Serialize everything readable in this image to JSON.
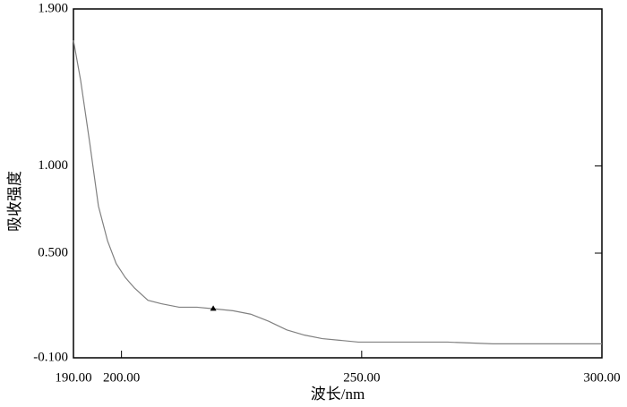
{
  "chart_data": {
    "type": "line",
    "x_label": "波长/nm",
    "y_label": "吸收强度",
    "x": [
      190.0,
      191.5,
      193.4,
      195.2,
      197.1,
      198.9,
      200.8,
      202.7,
      205.5,
      208.3,
      212.0,
      215.7,
      219.5,
      223.2,
      226.9,
      230.6,
      234.4,
      238.1,
      241.8,
      245.6,
      249.3,
      258.6,
      267.9,
      277.3,
      286.6,
      295.9,
      300.0
    ],
    "series": [
      {
        "color": "#808080",
        "values": [
          1.72,
          1.49,
          1.13,
          0.77,
          0.57,
          0.44,
          0.36,
          0.3,
          0.23,
          0.21,
          0.19,
          0.19,
          0.18,
          0.17,
          0.15,
          0.11,
          0.06,
          0.03,
          0.01,
          0.0,
          -0.01,
          -0.01,
          -0.01,
          -0.02,
          -0.02,
          -0.02,
          -0.02
        ]
      }
    ],
    "marker": {
      "x": 219.1,
      "y": 0.18
    },
    "xlim": [
      190,
      300
    ],
    "xticks": [
      {
        "value": 190,
        "label": "190.00"
      },
      {
        "value": 200,
        "label": "200.00"
      },
      {
        "value": 250,
        "label": "250.00"
      },
      {
        "value": 300,
        "label": "300.00"
      }
    ],
    "ylim": [
      -0.1,
      1.9
    ],
    "yticks": [
      {
        "value": 1.9,
        "label": "1.900"
      },
      {
        "value": 1.0,
        "label": "1.000"
      },
      {
        "value": 0.5,
        "label": "0.500"
      },
      {
        "value": -0.1,
        "label": "-0.100"
      }
    ]
  }
}
